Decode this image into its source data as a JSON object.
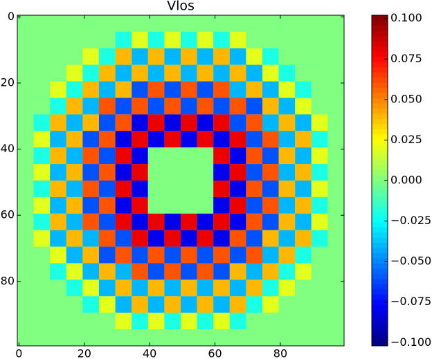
{
  "chart_data": {
    "type": "heatmap",
    "title": "Vlos",
    "colormap": "jet",
    "x": [
      2,
      7,
      12,
      17,
      22,
      27,
      32,
      37,
      42,
      47,
      52,
      57,
      62,
      67,
      72,
      77,
      82,
      87,
      92,
      97
    ],
    "y": [
      2,
      7,
      12,
      17,
      22,
      27,
      32,
      37,
      42,
      47,
      52,
      57,
      62,
      67,
      72,
      77,
      82,
      87,
      92,
      97
    ],
    "values": [
      [
        0,
        0,
        0,
        0,
        0,
        0,
        0,
        0,
        0,
        0,
        0,
        0,
        0,
        0,
        0,
        0,
        0,
        0,
        0,
        0
      ],
      [
        0,
        0,
        0,
        0,
        0,
        0,
        -0.02,
        0.02,
        -0.02,
        0.02,
        -0.02,
        0.02,
        -0.02,
        0.02,
        0,
        0,
        0,
        0,
        0,
        0
      ],
      [
        0,
        0,
        0,
        0,
        0.02,
        -0.02,
        0.04,
        -0.04,
        0.04,
        -0.04,
        0.04,
        -0.04,
        0.04,
        -0.04,
        0.02,
        -0.02,
        0,
        0,
        0,
        0
      ],
      [
        0,
        0,
        0,
        0.02,
        -0.02,
        0.04,
        -0.04,
        0.04,
        -0.04,
        0.04,
        -0.04,
        0.04,
        -0.04,
        0.04,
        -0.04,
        0.02,
        -0.02,
        0,
        0,
        0
      ],
      [
        0,
        0,
        0.02,
        -0.02,
        0.04,
        -0.04,
        0.04,
        -0.06,
        0.06,
        -0.06,
        0.06,
        -0.06,
        0.06,
        -0.04,
        0.04,
        -0.04,
        0.02,
        -0.02,
        0,
        0
      ],
      [
        0,
        0,
        -0.02,
        0.04,
        -0.04,
        0.06,
        -0.06,
        0.06,
        -0.06,
        0.06,
        -0.06,
        0.06,
        -0.06,
        0.06,
        -0.06,
        0.04,
        -0.04,
        0.02,
        0,
        0
      ],
      [
        0,
        -0.02,
        0.04,
        -0.04,
        0.04,
        -0.06,
        0.06,
        -0.08,
        0.08,
        -0.08,
        0.08,
        -0.08,
        0.08,
        -0.06,
        0.06,
        -0.04,
        0.04,
        -0.04,
        0.02,
        0
      ],
      [
        0,
        0.02,
        -0.04,
        0.04,
        -0.06,
        0.06,
        -0.08,
        0.08,
        -0.08,
        0.08,
        -0.08,
        0.08,
        -0.08,
        0.08,
        -0.06,
        0.06,
        -0.04,
        0.04,
        -0.02,
        0
      ],
      [
        0,
        -0.02,
        0.04,
        -0.04,
        0.06,
        -0.06,
        0.08,
        -0.08,
        0,
        0,
        0,
        0,
        0.08,
        -0.08,
        0.06,
        -0.06,
        0.04,
        -0.04,
        0.02,
        0
      ],
      [
        0,
        0.02,
        -0.04,
        0.04,
        -0.06,
        0.06,
        -0.08,
        0.08,
        0,
        0,
        0,
        0,
        -0.08,
        0.08,
        -0.06,
        0.06,
        -0.04,
        0.04,
        -0.02,
        0
      ],
      [
        0,
        -0.02,
        0.04,
        -0.04,
        0.06,
        -0.06,
        0.08,
        -0.08,
        0,
        0,
        0,
        0,
        0.08,
        -0.08,
        0.06,
        -0.06,
        0.04,
        -0.04,
        0.02,
        0
      ],
      [
        0,
        0.02,
        -0.04,
        0.04,
        -0.06,
        0.06,
        -0.08,
        0.08,
        0,
        0,
        0,
        0,
        -0.08,
        0.08,
        -0.06,
        0.06,
        -0.04,
        0.04,
        -0.02,
        0
      ],
      [
        0,
        -0.02,
        0.04,
        -0.04,
        0.06,
        -0.06,
        0.08,
        -0.08,
        0.08,
        -0.08,
        0.08,
        -0.08,
        0.08,
        -0.08,
        0.06,
        -0.06,
        0.04,
        -0.04,
        0.02,
        0
      ],
      [
        0,
        0.02,
        -0.04,
        0.04,
        -0.04,
        0.06,
        -0.06,
        0.08,
        -0.08,
        0.08,
        -0.08,
        0.08,
        -0.08,
        0.06,
        -0.06,
        0.04,
        -0.04,
        0.04,
        -0.02,
        0
      ],
      [
        0,
        0,
        0.02,
        -0.04,
        0.04,
        -0.06,
        0.06,
        -0.06,
        0.06,
        -0.06,
        0.06,
        -0.06,
        0.06,
        -0.06,
        0.06,
        -0.04,
        0.04,
        -0.02,
        0,
        0
      ],
      [
        0,
        0,
        -0.02,
        0.02,
        -0.04,
        0.04,
        -0.04,
        0.06,
        -0.06,
        0.06,
        -0.06,
        0.06,
        -0.06,
        0.04,
        -0.04,
        0.04,
        -0.02,
        0.02,
        0,
        0
      ],
      [
        0,
        0,
        0,
        -0.02,
        0.02,
        -0.04,
        0.04,
        -0.04,
        0.04,
        -0.04,
        0.04,
        -0.04,
        0.04,
        -0.04,
        0.04,
        -0.02,
        0.02,
        0,
        0,
        0
      ],
      [
        0,
        0,
        0,
        0,
        -0.02,
        0.02,
        -0.04,
        0.04,
        -0.04,
        0.04,
        -0.04,
        0.04,
        -0.04,
        0.04,
        -0.02,
        0.02,
        0,
        0,
        0,
        0
      ],
      [
        0,
        0,
        0,
        0,
        0,
        0,
        0.02,
        -0.02,
        0.02,
        -0.02,
        0.02,
        -0.02,
        0.02,
        -0.02,
        0,
        0,
        0,
        0,
        0,
        0
      ],
      [
        0,
        0,
        0,
        0,
        0,
        0,
        0,
        0,
        0,
        0,
        0,
        0,
        0,
        0,
        0,
        0,
        0,
        0,
        0,
        0
      ]
    ],
    "xlim": [
      -0.5,
      99.5
    ],
    "ylim": [
      99.5,
      -0.5
    ],
    "xticks": [
      0,
      20,
      40,
      60,
      80
    ],
    "yticks": [
      0,
      20,
      40,
      60,
      80
    ],
    "clim": [
      -0.102,
      0.102
    ],
    "cticks": [
      {
        "value": -0.1,
        "label": "−0.100"
      },
      {
        "value": -0.075,
        "label": "−0.075"
      },
      {
        "value": -0.05,
        "label": "−0.050"
      },
      {
        "value": -0.025,
        "label": "−0.025"
      },
      {
        "value": 0,
        "label": "0.000"
      },
      {
        "value": 0.025,
        "label": "0.025"
      },
      {
        "value": 0.05,
        "label": "0.050"
      },
      {
        "value": 0.075,
        "label": "0.075"
      },
      {
        "value": 0.1,
        "label": "0.100"
      }
    ]
  }
}
